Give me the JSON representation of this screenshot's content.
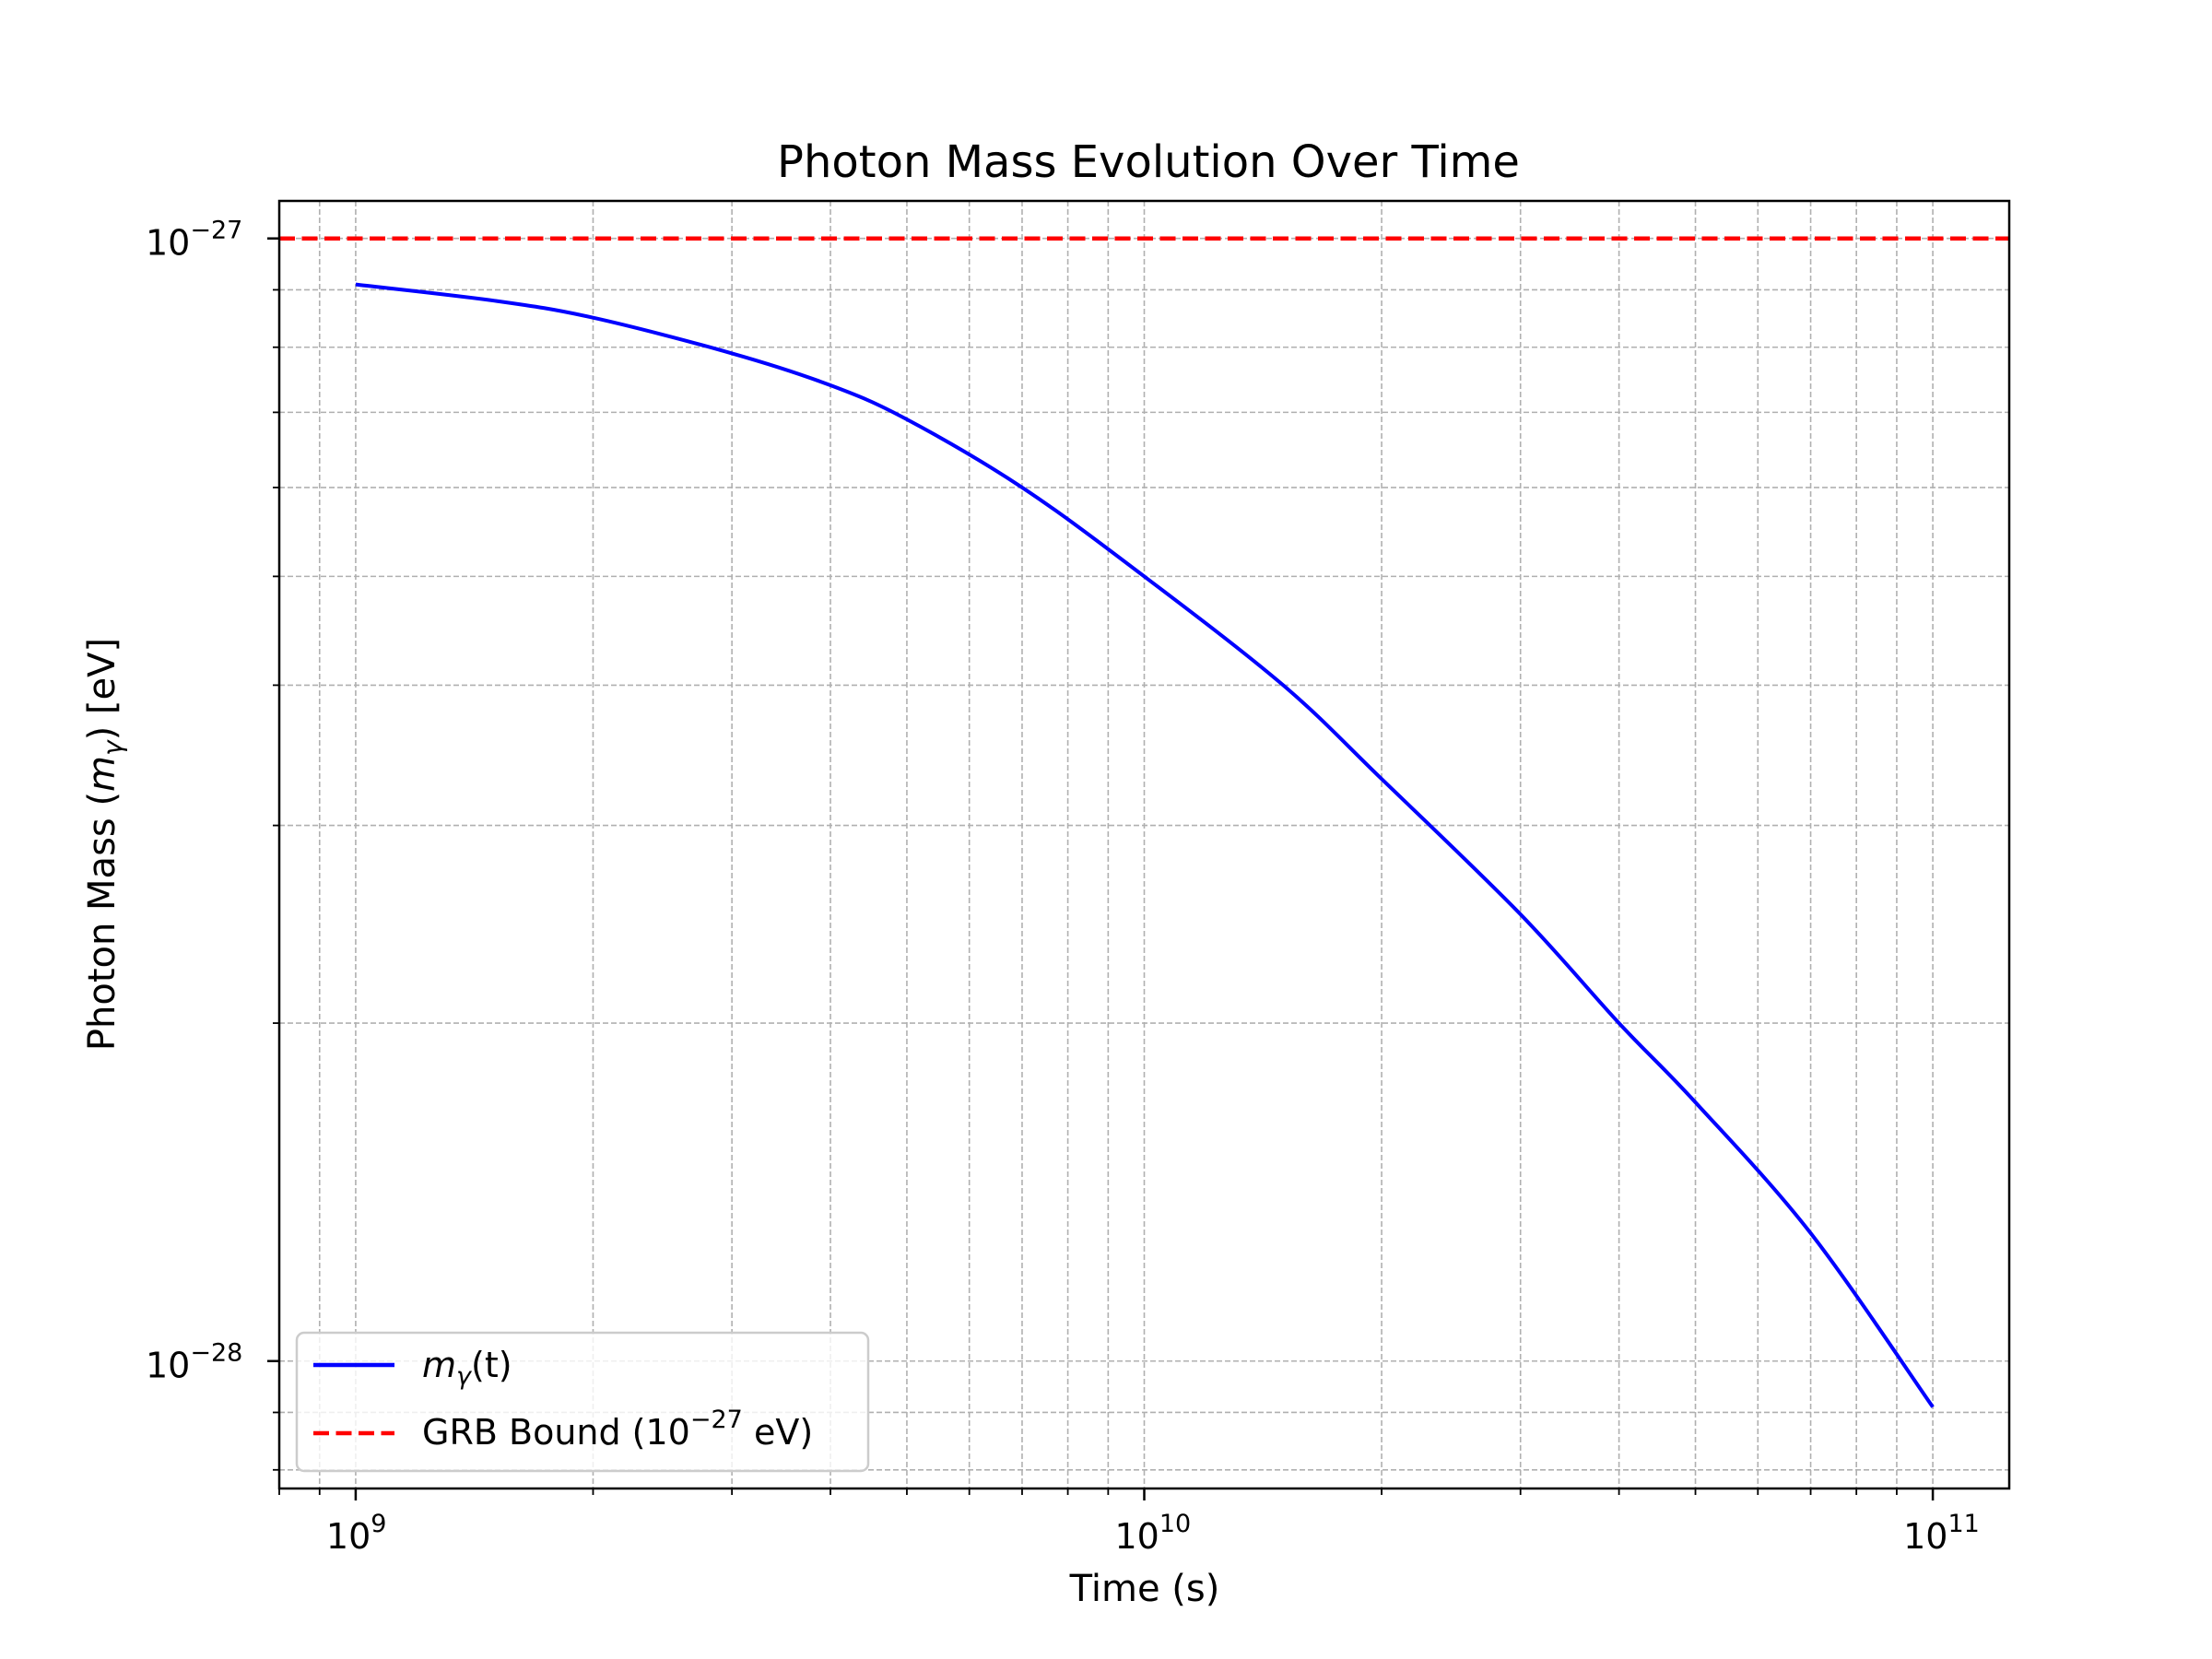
{
  "chart_data": {
    "type": "line",
    "title": "Photon Mass Evolution Over Time",
    "xlabel": "Time (s)",
    "ylabel_prefix": "Photon Mass (",
    "ylabel_symbol": "m",
    "ylabel_sub": "γ",
    "ylabel_suffix": ") [eV]",
    "xscale": "log",
    "yscale": "log",
    "xlim": [
      800000000,
      125000000000
    ],
    "ylim": [
      7.7e-29,
      1.08e-27
    ],
    "grid": true,
    "legend_position": "lower-left",
    "x_ticks": [
      {
        "value": 1000000000,
        "base": "10",
        "exp": "9"
      },
      {
        "value": 10000000000,
        "base": "10",
        "exp": "10"
      },
      {
        "value": 100000000000,
        "base": "10",
        "exp": "11"
      }
    ],
    "y_ticks": [
      {
        "value": 1e-27,
        "base": "10",
        "exp": "−27"
      },
      {
        "value": 1e-28,
        "base": "10",
        "exp": "−28"
      }
    ],
    "series": [
      {
        "name": "mγ(t)",
        "legend_symbol": "m",
        "legend_sub": "γ",
        "legend_rest": "(t)",
        "color": "#0000ff",
        "style": "solid",
        "x": [
          1000000000,
          1500000000,
          2000000000,
          3000000000,
          4000000000,
          5000000000,
          7000000000,
          10000000000,
          15000000000,
          20000000000,
          30000000000,
          40000000000,
          50000000000,
          70000000000,
          100000000000
        ],
        "y": [
          9.1e-28,
          8.8e-28,
          8.5e-28,
          7.9e-28,
          7.4e-28,
          6.9e-28,
          6e-28,
          5e-28,
          4e-28,
          3.3e-28,
          2.5e-28,
          2e-28,
          1.7e-28,
          1.3e-28,
          9.1e-29
        ]
      },
      {
        "name": "GRB Bound (10−27 eV)",
        "legend_prefix": "GRB Bound (10",
        "legend_exp": "−27",
        "legend_suffix": " eV)",
        "color": "#ff0000",
        "style": "dashed",
        "y_constant": 1e-27
      }
    ]
  }
}
